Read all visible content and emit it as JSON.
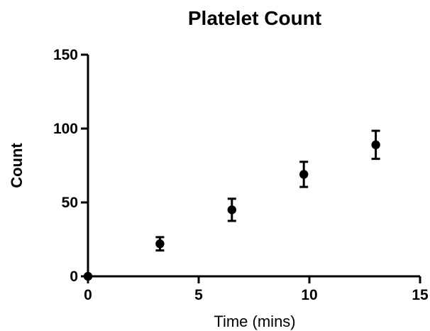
{
  "chart_data": {
    "type": "scatter",
    "title": "Platelet Count",
    "xlabel": "Time (mins)",
    "ylabel": "Count",
    "xlim": [
      0,
      15
    ],
    "ylim": [
      0,
      150
    ],
    "x_ticks": [
      0,
      5,
      10,
      15
    ],
    "y_ticks": [
      0,
      50,
      100,
      150
    ],
    "grid": false,
    "points": [
      {
        "x": 0,
        "y": 0,
        "error": 0
      },
      {
        "x": 3.25,
        "y": 22,
        "error": 4.5
      },
      {
        "x": 6.5,
        "y": 45,
        "error": 7.5
      },
      {
        "x": 9.75,
        "y": 69,
        "error": 8.5
      },
      {
        "x": 13,
        "y": 89,
        "error": 9.5
      }
    ],
    "marker_color": "#000000",
    "axis_color": "#000000"
  }
}
